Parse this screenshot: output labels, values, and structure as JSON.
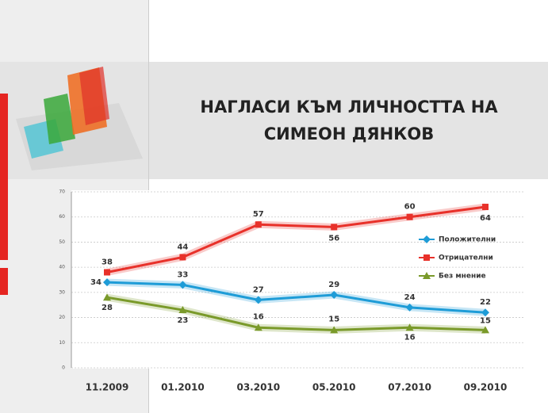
{
  "chart_data": {
    "type": "line",
    "title": "НАГЛАСИ КЪМ ЛИЧНОСТТА НА СИМЕОН ДЯНКОВ",
    "categories": [
      "11.2009",
      "01.2010",
      "03.2010",
      "05.2010",
      "07.2010",
      "09.2010"
    ],
    "series": [
      {
        "name": "Положителни",
        "color": "#1e9cd7",
        "marker": "diamond",
        "values": [
          34,
          33,
          27,
          29,
          24,
          22
        ]
      },
      {
        "name": "Отрицателни",
        "color": "#e8312a",
        "marker": "square",
        "values": [
          38,
          44,
          57,
          56,
          60,
          64
        ]
      },
      {
        "name": "Без мнение",
        "color": "#7a9a2a",
        "marker": "triangle",
        "values": [
          28,
          23,
          16,
          15,
          16,
          15
        ]
      }
    ],
    "ylim": [
      0,
      70
    ],
    "yticks": [
      0,
      10,
      20,
      30,
      40,
      50,
      60,
      70
    ],
    "grid": true,
    "legend": "right"
  }
}
